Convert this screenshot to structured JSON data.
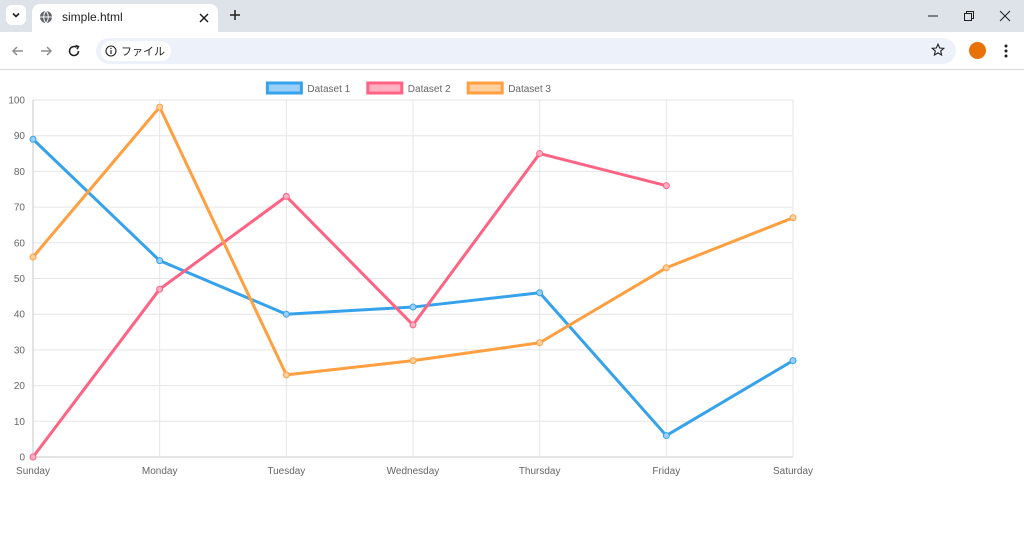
{
  "browser": {
    "tab_title": "simple.html",
    "address_chip_label": "ファイル",
    "icons": {
      "tab_search": "chevron-down-icon",
      "tab_favicon": "globe-icon",
      "tab_close": "close-icon",
      "new_tab": "plus-icon",
      "minimize": "minimize-icon",
      "restore": "restore-icon",
      "close_window": "close-icon",
      "back": "arrow-left-icon",
      "forward": "arrow-right-icon",
      "reload": "reload-icon",
      "info": "info-icon",
      "bookmark": "star-icon",
      "menu": "kebab-menu-icon"
    },
    "profile_color": "#e8710a"
  },
  "chart_data": {
    "type": "line",
    "categories": [
      "Sunday",
      "Monday",
      "Tuesday",
      "Wednesday",
      "Thursday",
      "Friday",
      "Saturday"
    ],
    "series": [
      {
        "name": "Dataset 1",
        "color": "#36a2eb",
        "fill": "#9ad0f5",
        "values": [
          89,
          55,
          40,
          42,
          46,
          6,
          27
        ]
      },
      {
        "name": "Dataset 2",
        "color": "#ff6384",
        "fill": "#ffb1c1",
        "values": [
          0,
          47,
          73,
          37,
          85,
          76,
          null
        ]
      },
      {
        "name": "Dataset 3",
        "color": "#ff9f40",
        "fill": "#ffcf9f",
        "values": [
          56,
          98,
          23,
          27,
          32,
          53,
          67
        ]
      }
    ],
    "yticks": [
      "0",
      "10",
      "20",
      "30",
      "40",
      "50",
      "60",
      "70",
      "80",
      "90",
      "100"
    ],
    "ylim": [
      0,
      100
    ],
    "grid": true,
    "legend": "top-center"
  }
}
